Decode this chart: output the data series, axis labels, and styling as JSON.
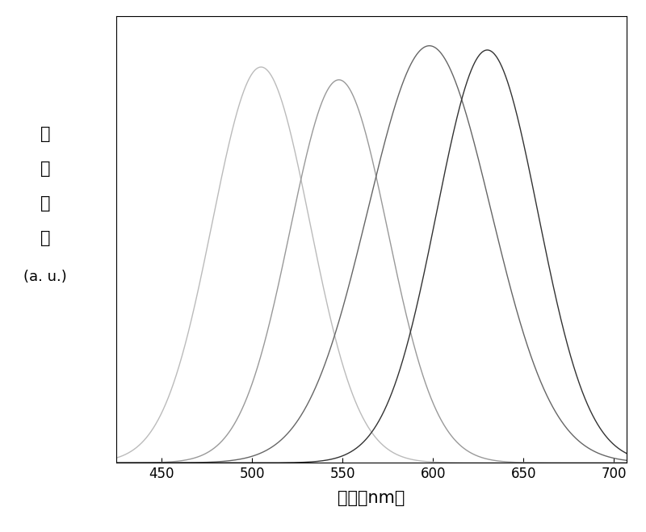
{
  "curves": [
    {
      "peak": 505,
      "sigma": 27,
      "amplitude": 0.93,
      "color": "#bbbbbb",
      "linewidth": 1.0
    },
    {
      "peak": 548,
      "sigma": 27,
      "amplitude": 0.9,
      "color": "#999999",
      "linewidth": 1.0
    },
    {
      "peak": 598,
      "sigma": 34,
      "amplitude": 0.98,
      "color": "#666666",
      "linewidth": 1.0
    },
    {
      "peak": 630,
      "sigma": 28,
      "amplitude": 0.97,
      "color": "#333333",
      "linewidth": 1.0
    }
  ],
  "xmin": 425,
  "xmax": 707,
  "ymin": 0.0,
  "ymax": 1.05,
  "xticks": [
    450,
    500,
    550,
    600,
    650,
    700
  ],
  "ylabel_chars": [
    "荧",
    "光",
    "强",
    "度"
  ],
  "ylabel_unit": "(a. u.)",
  "xlabel": "波长（nm）",
  "background_color": "#ffffff",
  "border_color": "#000000",
  "tick_fontsize": 12,
  "label_fontsize": 15,
  "unit_fontsize": 13
}
